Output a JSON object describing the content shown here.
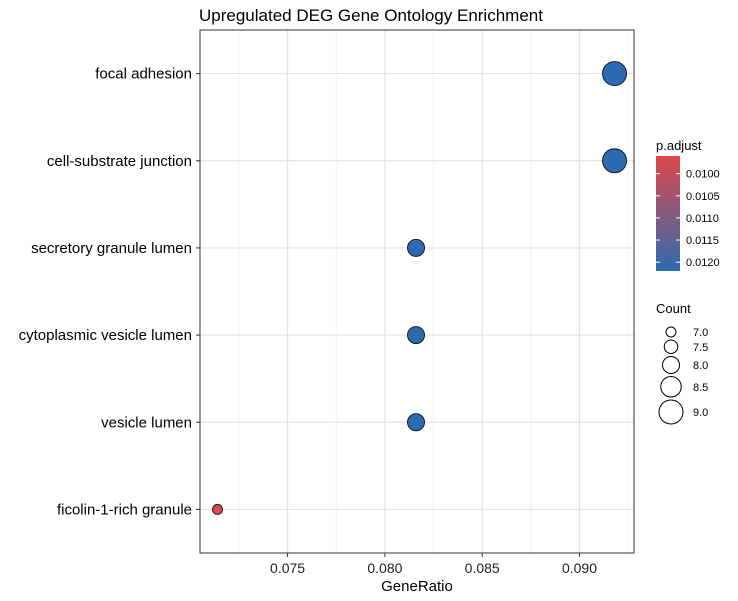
{
  "chart_data": {
    "type": "scatter",
    "title": "Upregulated DEG Gene Ontology Enrichment",
    "xlabel": "GeneRatio",
    "ylabel": "",
    "xlim": [
      0.0705,
      0.0928
    ],
    "x_ticks": [
      0.075,
      0.08,
      0.085,
      0.09
    ],
    "x_tick_labels": [
      "0.075",
      "0.080",
      "0.085",
      "0.090"
    ],
    "grid": true,
    "categories": [
      "focal adhesion",
      "cell-substrate junction",
      "secretory granule lumen",
      "cytoplasmic vesicle lumen",
      "vesicle lumen",
      "ficolin-1-rich granule"
    ],
    "points": [
      {
        "term": "focal adhesion",
        "gene_ratio": 0.0918,
        "count": 9,
        "p_adjust": 0.0122
      },
      {
        "term": "cell-substrate junction",
        "gene_ratio": 0.0918,
        "count": 9,
        "p_adjust": 0.0122
      },
      {
        "term": "secretory granule lumen",
        "gene_ratio": 0.0816,
        "count": 8,
        "p_adjust": 0.0122
      },
      {
        "term": "cytoplasmic vesicle lumen",
        "gene_ratio": 0.0816,
        "count": 8,
        "p_adjust": 0.0122
      },
      {
        "term": "vesicle lumen",
        "gene_ratio": 0.0816,
        "count": 8,
        "p_adjust": 0.0122
      },
      {
        "term": "ficolin-1-rich granule",
        "gene_ratio": 0.0714,
        "count": 7,
        "p_adjust": 0.0096
      }
    ],
    "color_legend": {
      "title": "p.adjust",
      "range": [
        0.0096,
        0.0122
      ],
      "ticks": [
        0.01,
        0.0105,
        0.011,
        0.0115,
        0.012
      ],
      "tick_labels": [
        "0.0100",
        "0.0105",
        "0.0110",
        "0.0115",
        "0.0120"
      ],
      "low_color": "#e0474c",
      "high_color": "#2d6bb0"
    },
    "size_legend": {
      "title": "Count",
      "values": [
        7.0,
        7.5,
        8.0,
        8.5,
        9.0
      ],
      "labels": [
        "7.0",
        "7.5",
        "8.0",
        "8.5",
        "9.0"
      ]
    }
  }
}
